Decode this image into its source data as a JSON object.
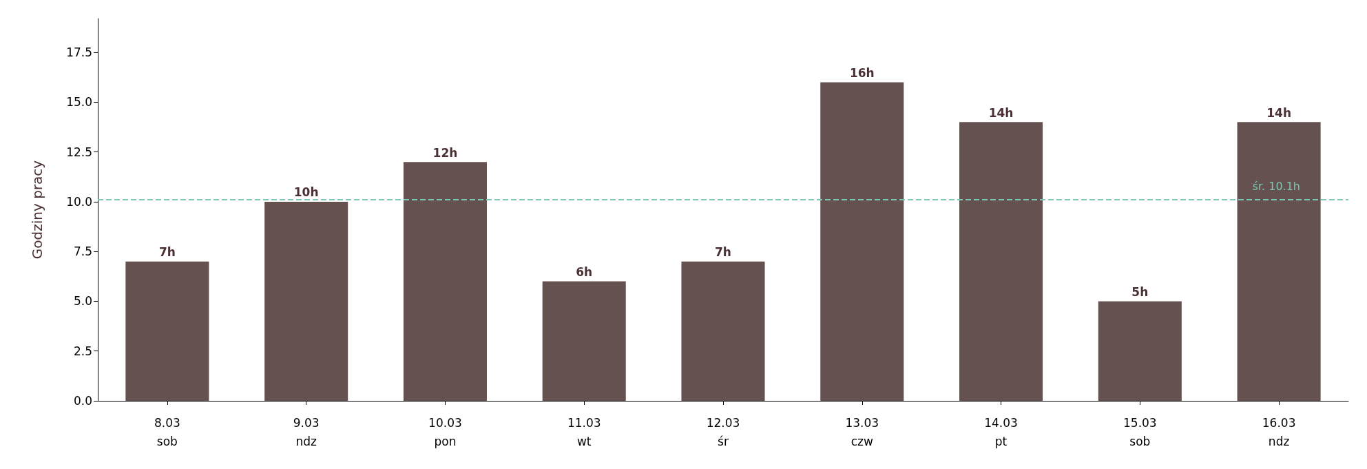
{
  "chart_data": {
    "type": "bar",
    "ylabel": "Godziny pracy",
    "categories": [
      "8.03\nsob",
      "9.03\nndz",
      "10.03\npon",
      "11.03\nwt",
      "12.03\nśr",
      "13.03\nczw",
      "14.03\npt",
      "15.03\nsob",
      "16.03\nndz"
    ],
    "values": [
      7,
      10,
      12,
      6,
      7,
      16,
      14,
      5,
      14
    ],
    "value_labels": [
      "7h",
      "10h",
      "12h",
      "6h",
      "7h",
      "16h",
      "14h",
      "5h",
      "14h"
    ],
    "color": "#655250",
    "ylim": [
      0,
      19.2
    ],
    "yticks": [
      {
        "value": 0,
        "label": "0.0"
      },
      2.5,
      {
        "value": 5,
        "label": "5.0"
      },
      7.5,
      {
        "value": 10,
        "label": "10.0"
      },
      12.5,
      {
        "value": 15,
        "label": "15.0"
      },
      17.5
    ],
    "ref_lines": [
      {
        "axis": "y",
        "value": 10.1,
        "label": "śr. 10.1h",
        "color": "#7cc7b5",
        "line_style": "dashed"
      }
    ],
    "grid": false
  }
}
